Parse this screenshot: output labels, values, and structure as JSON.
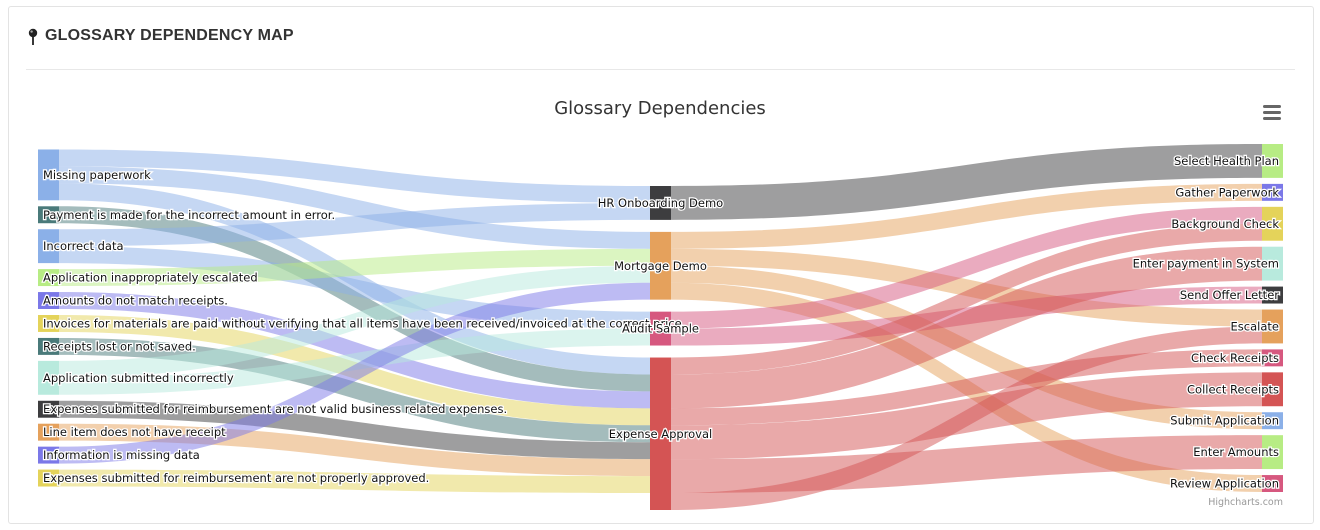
{
  "panel": {
    "title": "GLOSSARY DEPENDENCY MAP",
    "icon": "map-pin-icon"
  },
  "chart_data": {
    "type": "sankey",
    "title": "Glossary Dependencies",
    "credits": "Highcharts.com",
    "menu_icon": "hamburger-menu-icon",
    "columns": [
      [
        {
          "id": "Missing paperwork",
          "color": "#8bb0e8"
        },
        {
          "id": "Payment is made for the incorrect amount in error.",
          "color": "#4a7a7a"
        },
        {
          "id": "Incorrect data",
          "color": "#8bb0e8"
        },
        {
          "id": "Application inappropriately escalated",
          "color": "#b7ec84"
        },
        {
          "id": "Amounts do not match receipts.",
          "color": "#7b78e8"
        },
        {
          "id": "Invoices for materials are paid without verifying that all items have been received/invoiced at the correct price.",
          "color": "#e4d35a"
        },
        {
          "id": "Receipts lost or not saved.",
          "color": "#4a7a7a"
        },
        {
          "id": "Application submitted incorrectly",
          "color": "#b8eadd"
        },
        {
          "id": "Expenses submitted for reimbursement are not valid business related expenses.",
          "color": "#3d3d3f"
        },
        {
          "id": "Line item does not have receipt",
          "color": "#e5a15c"
        },
        {
          "id": "Information is missing data",
          "color": "#7b78e8"
        },
        {
          "id": "Expenses submitted for reimbursement are not properly approved.",
          "color": "#e4d35a"
        }
      ],
      [
        {
          "id": "HR Onboarding Demo",
          "color": "#3d3d3f"
        },
        {
          "id": "Mortgage Demo",
          "color": "#e5a15c"
        },
        {
          "id": "Audit Sample",
          "color": "#d6587f"
        },
        {
          "id": "Expense Approval",
          "color": "#d45454"
        }
      ],
      [
        {
          "id": "Select Health Plan",
          "color": "#b7ec84"
        },
        {
          "id": "Gather Paperwork",
          "color": "#7b78e8"
        },
        {
          "id": "Background Check",
          "color": "#e4d35a"
        },
        {
          "id": "Enter payment in System",
          "color": "#b8eadd"
        },
        {
          "id": "Send Offer Letter",
          "color": "#3d3d3f"
        },
        {
          "id": "Escalate",
          "color": "#e5a15c"
        },
        {
          "id": "Check Receipts",
          "color": "#d6587f"
        },
        {
          "id": "Collect Receipts",
          "color": "#d45454"
        },
        {
          "id": "Submit Application",
          "color": "#8bb0e8"
        },
        {
          "id": "Enter Amounts",
          "color": "#b7ec84"
        },
        {
          "id": "Review Application",
          "color": "#d6587f"
        }
      ]
    ],
    "links": [
      {
        "from": "Missing paperwork",
        "to": "HR Onboarding Demo",
        "weight": 1
      },
      {
        "from": "Missing paperwork",
        "to": "Mortgage Demo",
        "weight": 1
      },
      {
        "from": "Missing paperwork",
        "to": "Expense Approval",
        "weight": 1
      },
      {
        "from": "Payment is made for the incorrect amount in error.",
        "to": "Expense Approval",
        "weight": 1
      },
      {
        "from": "Incorrect data",
        "to": "HR Onboarding Demo",
        "weight": 1
      },
      {
        "from": "Incorrect data",
        "to": "Audit Sample",
        "weight": 1
      },
      {
        "from": "Application inappropriately escalated",
        "to": "Mortgage Demo",
        "weight": 1
      },
      {
        "from": "Amounts do not match receipts.",
        "to": "Expense Approval",
        "weight": 1
      },
      {
        "from": "Invoices for materials are paid without verifying that all items have been received/invoiced at the correct price.",
        "to": "Expense Approval",
        "weight": 1
      },
      {
        "from": "Receipts lost or not saved.",
        "to": "Expense Approval",
        "weight": 1
      },
      {
        "from": "Application submitted incorrectly",
        "to": "Mortgage Demo",
        "weight": 1
      },
      {
        "from": "Application submitted incorrectly",
        "to": "Audit Sample",
        "weight": 1
      },
      {
        "from": "Expenses submitted for reimbursement are not valid business related expenses.",
        "to": "Expense Approval",
        "weight": 1
      },
      {
        "from": "Line item does not have receipt",
        "to": "Expense Approval",
        "weight": 1
      },
      {
        "from": "Information is missing data",
        "to": "Mortgage Demo",
        "weight": 1
      },
      {
        "from": "Expenses submitted for reimbursement are not properly approved.",
        "to": "Expense Approval",
        "weight": 1
      },
      {
        "from": "HR Onboarding Demo",
        "to": "Select Health Plan",
        "weight": 2
      },
      {
        "from": "Mortgage Demo",
        "to": "Gather Paperwork",
        "weight": 1
      },
      {
        "from": "Mortgage Demo",
        "to": "Escalate",
        "weight": 1
      },
      {
        "from": "Mortgage Demo",
        "to": "Submit Application",
        "weight": 1
      },
      {
        "from": "Mortgage Demo",
        "to": "Review Application",
        "weight": 1
      },
      {
        "from": "Audit Sample",
        "to": "Background Check",
        "weight": 1
      },
      {
        "from": "Audit Sample",
        "to": "Send Offer Letter",
        "weight": 1
      },
      {
        "from": "Expense Approval",
        "to": "Background Check",
        "weight": 1
      },
      {
        "from": "Expense Approval",
        "to": "Enter payment in System",
        "weight": 2
      },
      {
        "from": "Expense Approval",
        "to": "Check Receipts",
        "weight": 1
      },
      {
        "from": "Expense Approval",
        "to": "Collect Receipts",
        "weight": 2
      },
      {
        "from": "Expense Approval",
        "to": "Enter Amounts",
        "weight": 2
      },
      {
        "from": "Expense Approval",
        "to": "Escalate",
        "weight": 1
      }
    ]
  }
}
